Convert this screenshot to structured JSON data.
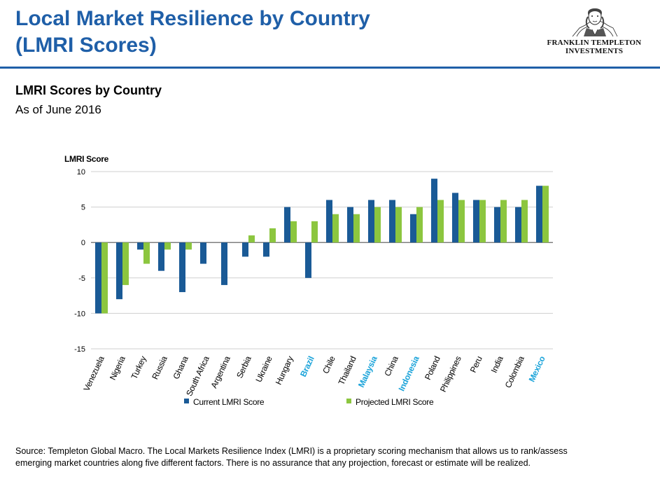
{
  "header": {
    "title_line1": "Local Market Resilience by Country",
    "title_line2": "(LMRI Scores)"
  },
  "logo": {
    "line1": "FRANKLIN TEMPLETON",
    "line2": "INVESTMENTS",
    "icon": "benjamin-franklin-portrait-icon"
  },
  "colors": {
    "title": "#1f5fa8",
    "current": "#1a5a96",
    "projected": "#8cc63f",
    "highlight_label": "#1aa3d9"
  },
  "chart_data": {
    "type": "bar",
    "title": "LMRI Scores by Country",
    "subtitle": "As of June 2016",
    "ylabel": "LMRI Score",
    "ylim": [
      -15,
      10
    ],
    "yticks": [
      10,
      5,
      0,
      -5,
      -10,
      -15
    ],
    "grid": true,
    "legend_position": "bottom",
    "categories": [
      "Venezuela",
      "Nigeria",
      "Turkey",
      "Russia",
      "Ghana",
      "South Africa",
      "Argentina",
      "Serbia",
      "Ukraine",
      "Hungary",
      "Brazil",
      "Chile",
      "Thailand",
      "Malaysia",
      "China",
      "Indonesia",
      "Poland",
      "Philippines",
      "Peru",
      "India",
      "Colombia",
      "Mexico"
    ],
    "highlighted_categories": [
      "Brazil",
      "Malaysia",
      "Indonesia",
      "Mexico"
    ],
    "series": [
      {
        "name": "Current LMRI Score",
        "values": [
          -10,
          -8,
          -1,
          -4,
          -7,
          -3,
          -6,
          -2,
          -2,
          5,
          -5,
          6,
          5,
          6,
          6,
          4,
          9,
          7,
          6,
          5,
          5,
          8
        ]
      },
      {
        "name": "Projected LMRI Score",
        "values": [
          -10,
          -6,
          -3,
          -1,
          -1,
          0,
          0,
          1,
          2,
          3,
          3,
          4,
          4,
          5,
          5,
          5,
          6,
          6,
          6,
          6,
          6,
          8
        ]
      }
    ]
  },
  "footer": {
    "source_line1": "Source: Templeton Global Macro. The Local Markets Resilience Index (LMRI) is a proprietary scoring mechanism that allows us to rank/assess",
    "source_line2": "emerging market countries along five different factors. There is no assurance that  any projection, forecast or estimate will be realized."
  }
}
